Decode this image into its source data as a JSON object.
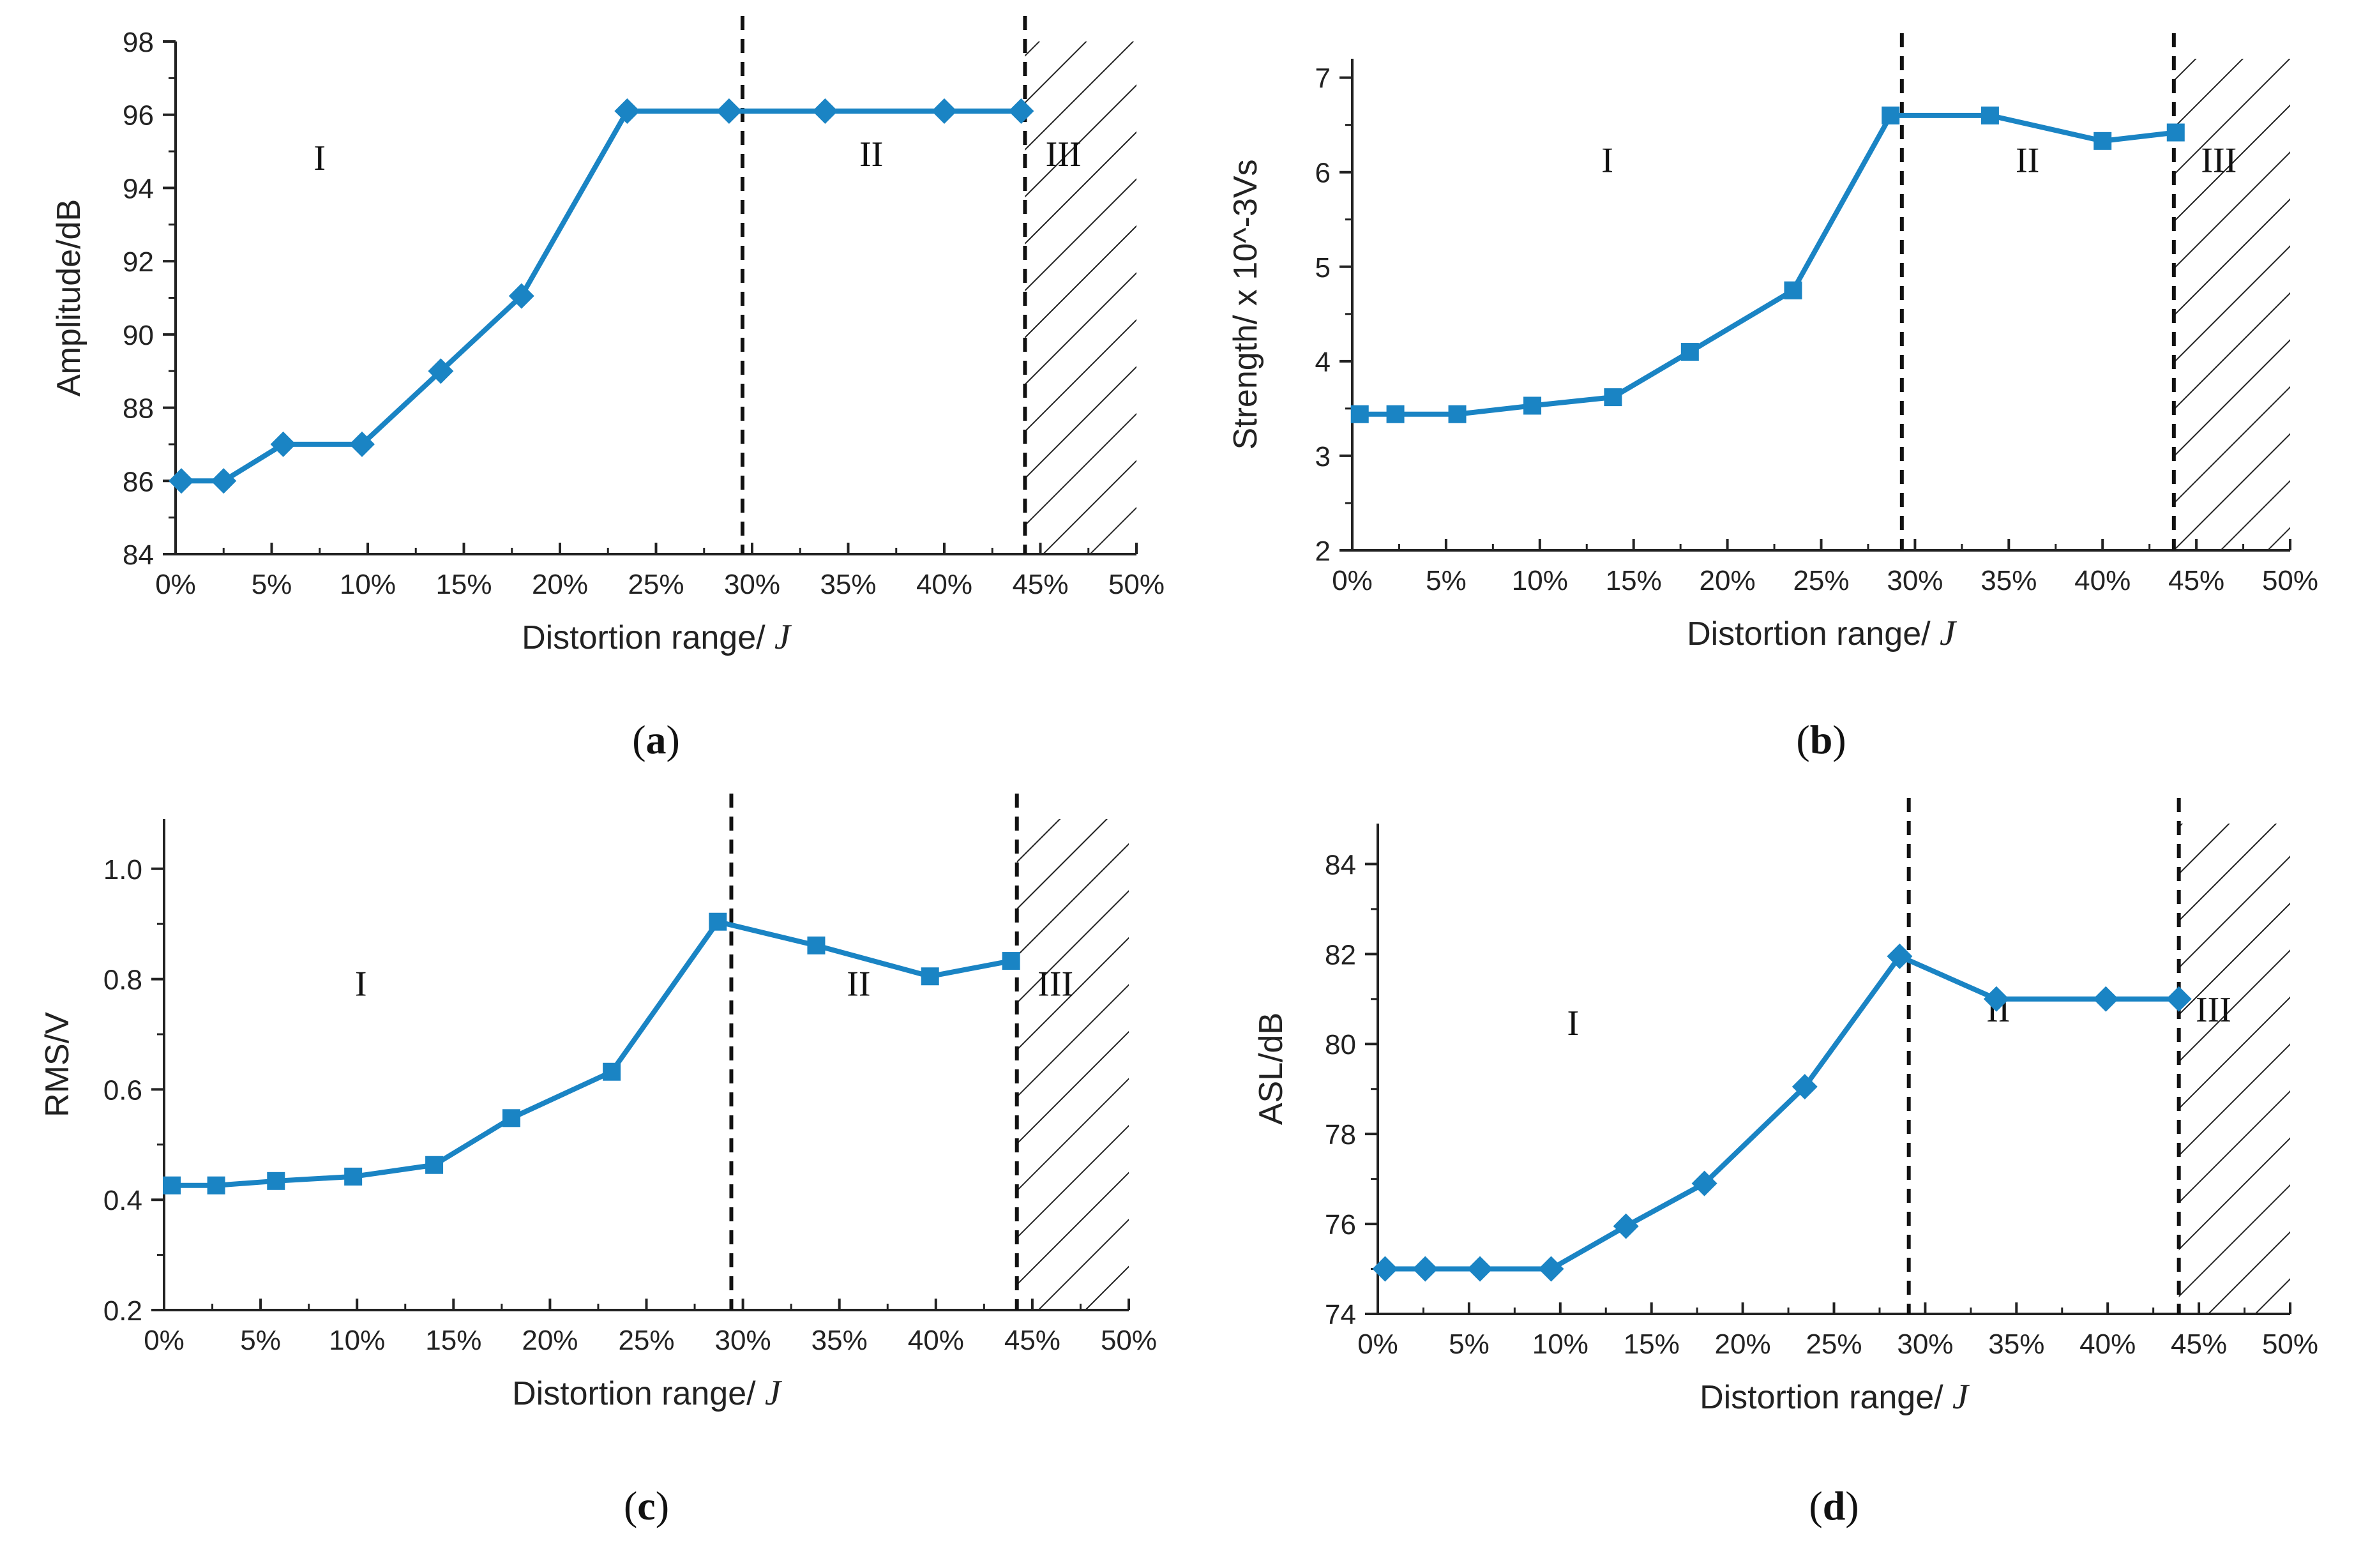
{
  "colors": {
    "series": "#1a84c4",
    "axis": "#222222",
    "hatch": "#222222",
    "divider": "#111111"
  },
  "chart_data": [
    {
      "type": "line",
      "panel": "a",
      "caption_letter": "a",
      "marker": "diamond",
      "xlabel": "Distortion range/ ",
      "xlabel_symbol": "J",
      "ylabel": "Amplitude/dB",
      "xlim": [
        0,
        50
      ],
      "ylim": [
        84,
        98
      ],
      "x_ticks": [
        0,
        5,
        10,
        15,
        20,
        25,
        30,
        35,
        40,
        45,
        50
      ],
      "x_tick_labels": [
        "0%",
        "5%",
        "10%",
        "15%",
        "20%",
        "25%",
        "30%",
        "35%",
        "40%",
        "45%",
        "50%"
      ],
      "y_ticks": [
        84,
        86,
        88,
        90,
        92,
        94,
        96,
        98
      ],
      "y_tick_labels": [
        "84",
        "86",
        "88",
        "90",
        "92",
        "94",
        "96",
        "98"
      ],
      "x": [
        0.3,
        2.5,
        5.6,
        9.7,
        13.8,
        18.0,
        23.5,
        28.8,
        33.8,
        40.0,
        44.0
      ],
      "y": [
        86,
        86,
        87,
        87,
        89,
        91.05,
        96.1,
        96.1,
        96.1,
        96.1,
        96.1
      ],
      "dividers": [
        29.5,
        44.2
      ],
      "hatch_from": 44.2,
      "regions": [
        {
          "label": "I",
          "x": 7.5,
          "y": 94.5
        },
        {
          "label": "II",
          "x": 36.2,
          "y": 94.6
        },
        {
          "label": "III",
          "x": 46.2,
          "y": 94.6
        }
      ]
    },
    {
      "type": "line",
      "panel": "b",
      "caption_letter": "b",
      "marker": "square",
      "xlabel": "Distortion range/ ",
      "xlabel_symbol": "J",
      "ylabel": "Strength/ x 10^-3Vs",
      "xlim": [
        0,
        50
      ],
      "ylim": [
        2,
        7.2
      ],
      "x_ticks": [
        0,
        5,
        10,
        15,
        20,
        25,
        30,
        35,
        40,
        45,
        50
      ],
      "x_tick_labels": [
        "0%",
        "5%",
        "10%",
        "15%",
        "20%",
        "25%",
        "30%",
        "35%",
        "40%",
        "45%",
        "50%"
      ],
      "y_ticks": [
        2,
        3,
        4,
        5,
        6,
        7
      ],
      "y_tick_labels": [
        "2",
        "3",
        "4",
        "5",
        "6",
        "7"
      ],
      "x": [
        0.4,
        2.3,
        5.6,
        9.6,
        13.9,
        18.0,
        23.5,
        28.7,
        34.0,
        40.0,
        43.9
      ],
      "y": [
        3.44,
        3.44,
        3.44,
        3.53,
        3.62,
        4.1,
        4.75,
        6.6,
        6.6,
        6.33,
        6.42
      ],
      "dividers": [
        29.3,
        43.8
      ],
      "hatch_from": 43.8,
      "regions": [
        {
          "label": "I",
          "x": 13.6,
          "y": 6.0
        },
        {
          "label": "II",
          "x": 36.0,
          "y": 6.0
        },
        {
          "label": "III",
          "x": 46.2,
          "y": 6.0
        }
      ]
    },
    {
      "type": "line",
      "panel": "c",
      "caption_letter": "c",
      "marker": "square",
      "xlabel": "Distortion range/ ",
      "xlabel_symbol": "J",
      "ylabel": "RMS/V",
      "xlim": [
        0,
        50
      ],
      "ylim": [
        0.2,
        1.09
      ],
      "x_ticks": [
        0,
        5,
        10,
        15,
        20,
        25,
        30,
        35,
        40,
        45,
        50
      ],
      "x_tick_labels": [
        "0%",
        "5%",
        "10%",
        "15%",
        "20%",
        "25%",
        "30%",
        "35%",
        "40%",
        "45%",
        "50%"
      ],
      "y_ticks": [
        0.2,
        0.4,
        0.6,
        0.8,
        1.0
      ],
      "y_tick_labels": [
        "0.2",
        "0.4",
        "0.6",
        "0.8",
        "1.0"
      ],
      "x": [
        0.4,
        2.7,
        5.8,
        9.8,
        14.0,
        18.0,
        23.2,
        28.7,
        33.8,
        39.7,
        43.9
      ],
      "y": [
        0.426,
        0.426,
        0.434,
        0.442,
        0.463,
        0.548,
        0.632,
        0.904,
        0.861,
        0.805,
        0.833
      ],
      "dividers": [
        29.4,
        44.2
      ],
      "hatch_from": 44.2,
      "regions": [
        {
          "label": "I",
          "x": 10.2,
          "y": 0.77
        },
        {
          "label": "II",
          "x": 36.0,
          "y": 0.77
        },
        {
          "label": "III",
          "x": 46.2,
          "y": 0.77
        }
      ]
    },
    {
      "type": "line",
      "panel": "d",
      "caption_letter": "d",
      "marker": "diamond",
      "xlabel": "Distortion range/ ",
      "xlabel_symbol": "J",
      "ylabel": "ASL/dB",
      "xlim": [
        0,
        50
      ],
      "ylim": [
        74,
        84.9
      ],
      "x_ticks": [
        0,
        5,
        10,
        15,
        20,
        25,
        30,
        35,
        40,
        45,
        50
      ],
      "x_tick_labels": [
        "0%",
        "5%",
        "10%",
        "15%",
        "20%",
        "25%",
        "30%",
        "35%",
        "40%",
        "45%",
        "50%"
      ],
      "y_ticks": [
        74,
        76,
        78,
        80,
        82,
        84
      ],
      "y_tick_labels": [
        "74",
        "76",
        "78",
        "80",
        "82",
        "84"
      ],
      "x": [
        0.4,
        2.6,
        5.6,
        9.5,
        13.6,
        17.9,
        23.4,
        28.6,
        33.9,
        39.9,
        43.9
      ],
      "y": [
        75,
        75,
        75,
        75,
        75.95,
        76.9,
        79.05,
        81.95,
        81.0,
        81.0,
        81.0
      ],
      "dividers": [
        29.1,
        43.9
      ],
      "hatch_from": 43.9,
      "regions": [
        {
          "label": "I",
          "x": 10.7,
          "y": 80.2
        },
        {
          "label": "II",
          "x": 34.0,
          "y": 80.5
        },
        {
          "label": "III",
          "x": 45.8,
          "y": 80.5
        }
      ]
    }
  ]
}
